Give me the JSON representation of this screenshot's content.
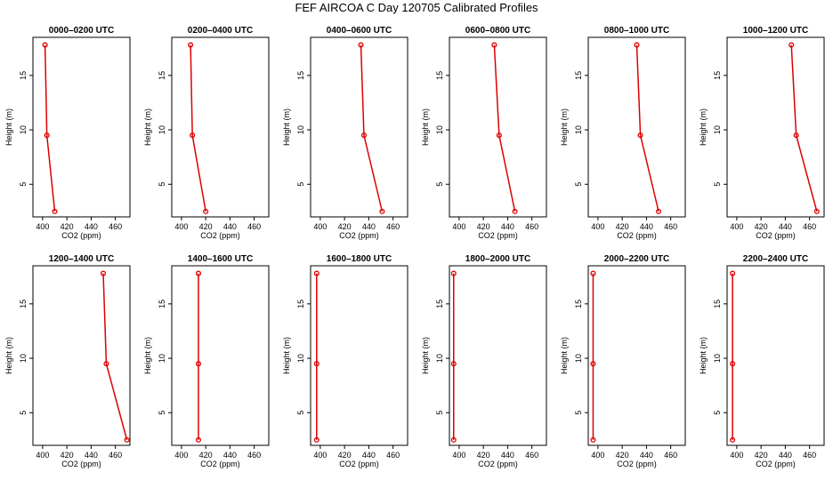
{
  "title": "FEF AIRCOA C  Day 120705  Calibrated Profiles",
  "colors": {
    "profile": "#dd0000",
    "axis": "#000000"
  },
  "chart_data": [
    {
      "type": "line",
      "title": "0000–0200 UTC",
      "xlabel": "CO2 (ppm)",
      "ylabel": "Height (m)",
      "xlim": [
        392,
        472
      ],
      "ylim": [
        2,
        18.5
      ],
      "xticks": [
        400,
        420,
        440,
        460
      ],
      "yticks": [
        5,
        10,
        15
      ],
      "x": [
        402,
        403.5,
        410
      ],
      "y": [
        17.8,
        9.5,
        2.5
      ]
    },
    {
      "type": "line",
      "title": "0200–0400 UTC",
      "xlabel": "CO2 (ppm)",
      "ylabel": "Height (m)",
      "xlim": [
        392,
        472
      ],
      "ylim": [
        2,
        18.5
      ],
      "xticks": [
        400,
        420,
        440,
        460
      ],
      "yticks": [
        5,
        10,
        15
      ],
      "x": [
        407.5,
        409,
        420
      ],
      "y": [
        17.8,
        9.5,
        2.5
      ]
    },
    {
      "type": "line",
      "title": "0400–0600 UTC",
      "xlabel": "CO2 (ppm)",
      "ylabel": "Height (m)",
      "xlim": [
        392,
        472
      ],
      "ylim": [
        2,
        18.5
      ],
      "xticks": [
        400,
        420,
        440,
        460
      ],
      "yticks": [
        5,
        10,
        15
      ],
      "x": [
        433.5,
        436,
        451
      ],
      "y": [
        17.8,
        9.5,
        2.5
      ]
    },
    {
      "type": "line",
      "title": "0600–0800 UTC",
      "xlabel": "CO2 (ppm)",
      "ylabel": "Height (m)",
      "xlim": [
        392,
        472
      ],
      "ylim": [
        2,
        18.5
      ],
      "xticks": [
        400,
        420,
        440,
        460
      ],
      "yticks": [
        5,
        10,
        15
      ],
      "x": [
        429,
        433,
        446
      ],
      "y": [
        17.8,
        9.5,
        2.5
      ]
    },
    {
      "type": "line",
      "title": "0800–1000 UTC",
      "xlabel": "CO2 (ppm)",
      "ylabel": "Height (m)",
      "xlim": [
        392,
        472
      ],
      "ylim": [
        2,
        18.5
      ],
      "xticks": [
        400,
        420,
        440,
        460
      ],
      "yticks": [
        5,
        10,
        15
      ],
      "x": [
        432,
        435,
        450
      ],
      "y": [
        17.8,
        9.5,
        2.5
      ]
    },
    {
      "type": "line",
      "title": "1000–1200 UTC",
      "xlabel": "CO2 (ppm)",
      "ylabel": "Height (m)",
      "xlim": [
        392,
        472
      ],
      "ylim": [
        2,
        18.5
      ],
      "xticks": [
        400,
        420,
        440,
        460
      ],
      "yticks": [
        5,
        10,
        15
      ],
      "x": [
        445,
        449,
        466
      ],
      "y": [
        17.8,
        9.5,
        2.5
      ]
    },
    {
      "type": "line",
      "title": "1200–1400 UTC",
      "xlabel": "CO2 (ppm)",
      "ylabel": "Height (m)",
      "xlim": [
        392,
        472
      ],
      "ylim": [
        2,
        18.5
      ],
      "xticks": [
        400,
        420,
        440,
        460
      ],
      "yticks": [
        5,
        10,
        15
      ],
      "x": [
        450,
        452.5,
        469.5
      ],
      "y": [
        17.8,
        9.5,
        2.5
      ]
    },
    {
      "type": "line",
      "title": "1400–1600 UTC",
      "xlabel": "CO2 (ppm)",
      "ylabel": "Height (m)",
      "xlim": [
        392,
        472
      ],
      "ylim": [
        2,
        18.5
      ],
      "xticks": [
        400,
        420,
        440,
        460
      ],
      "yticks": [
        5,
        10,
        15
      ],
      "x": [
        414,
        414,
        414
      ],
      "y": [
        17.8,
        9.5,
        2.5
      ]
    },
    {
      "type": "line",
      "title": "1600–1800 UTC",
      "xlabel": "CO2 (ppm)",
      "ylabel": "Height (m)",
      "xlim": [
        392,
        472
      ],
      "ylim": [
        2,
        18.5
      ],
      "xticks": [
        400,
        420,
        440,
        460
      ],
      "yticks": [
        5,
        10,
        15
      ],
      "x": [
        397,
        397,
        397
      ],
      "y": [
        17.8,
        9.5,
        2.5
      ]
    },
    {
      "type": "line",
      "title": "1800–2000 UTC",
      "xlabel": "CO2 (ppm)",
      "ylabel": "Height (m)",
      "xlim": [
        392,
        472
      ],
      "ylim": [
        2,
        18.5
      ],
      "xticks": [
        400,
        420,
        440,
        460
      ],
      "yticks": [
        5,
        10,
        15
      ],
      "x": [
        395.5,
        395.5,
        395.5
      ],
      "y": [
        17.8,
        9.5,
        2.5
      ]
    },
    {
      "type": "line",
      "title": "2000–2200 UTC",
      "xlabel": "CO2 (ppm)",
      "ylabel": "Height (m)",
      "xlim": [
        392,
        472
      ],
      "ylim": [
        2,
        18.5
      ],
      "xticks": [
        400,
        420,
        440,
        460
      ],
      "yticks": [
        5,
        10,
        15
      ],
      "x": [
        396,
        396,
        396
      ],
      "y": [
        17.8,
        9.5,
        2.5
      ]
    },
    {
      "type": "line",
      "title": "2200–2400 UTC",
      "xlabel": "CO2 (ppm)",
      "ylabel": "Height (m)",
      "xlim": [
        392,
        472
      ],
      "ylim": [
        2,
        18.5
      ],
      "xticks": [
        400,
        420,
        440,
        460
      ],
      "yticks": [
        5,
        10,
        15
      ],
      "x": [
        396.5,
        396.5,
        396.5
      ],
      "y": [
        17.8,
        9.5,
        2.5
      ]
    }
  ]
}
